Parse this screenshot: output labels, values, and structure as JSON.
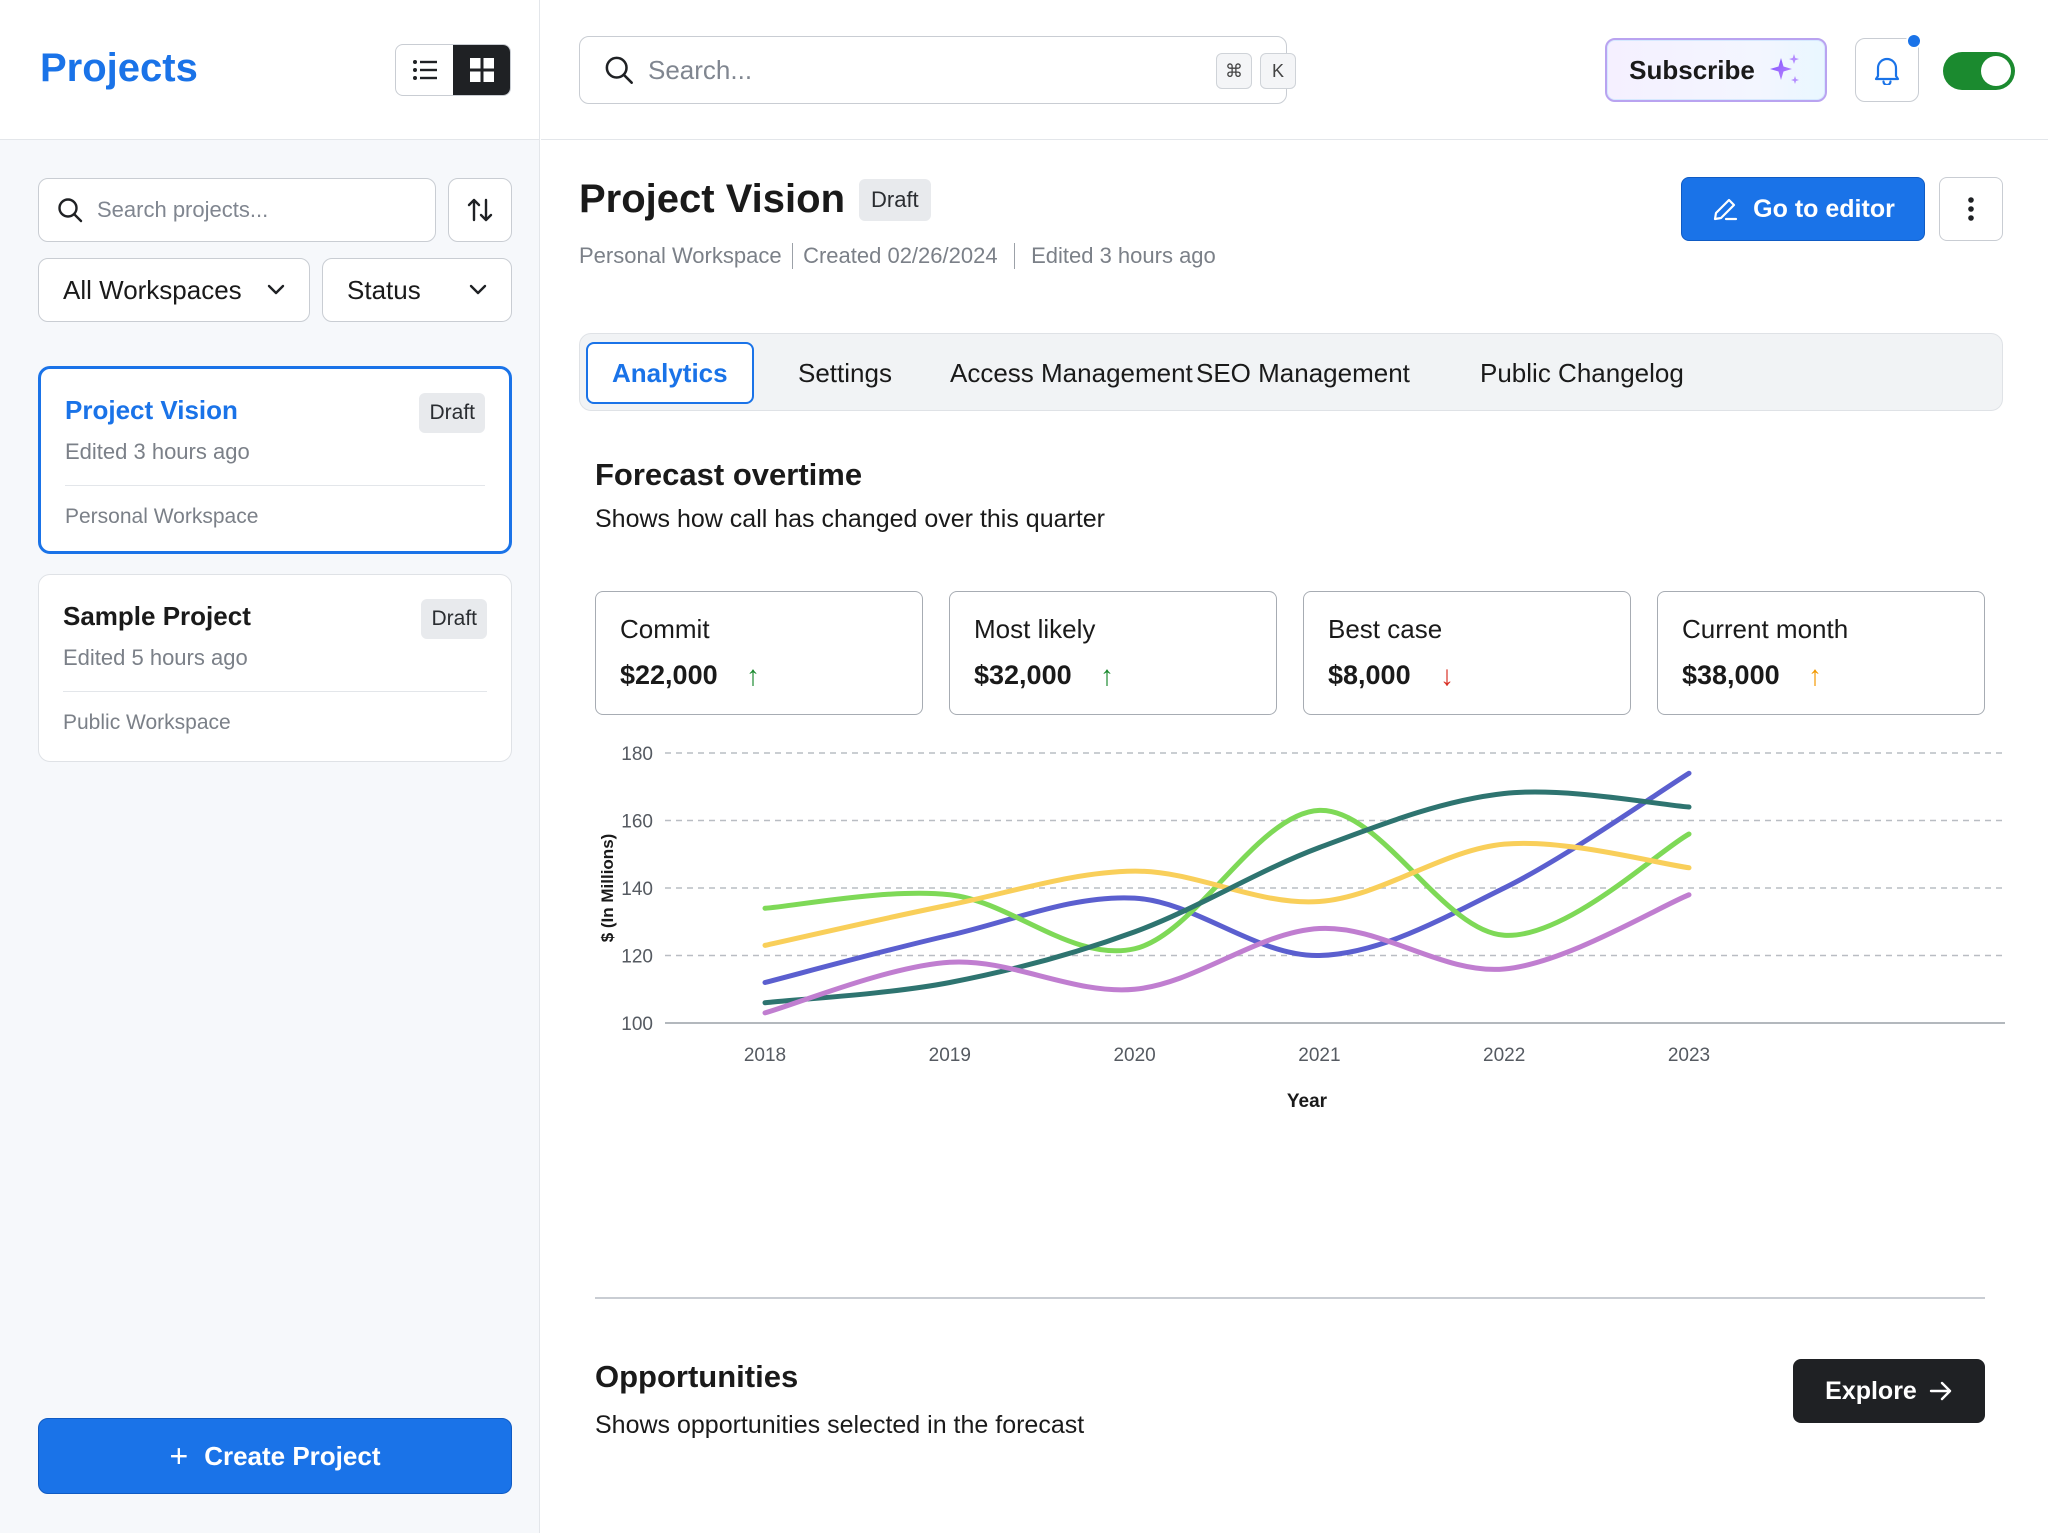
{
  "sidebar": {
    "title": "Projects",
    "search_placeholder": "Search projects...",
    "filters": {
      "workspace": "All Workspaces",
      "status": "Status"
    },
    "projects": [
      {
        "name": "Project Vision",
        "edited": "Edited 3 hours ago",
        "badge": "Draft",
        "workspace": "Personal Workspace"
      },
      {
        "name": "Sample Project",
        "edited": "Edited 5 hours ago",
        "badge": "Draft",
        "workspace": "Public Workspace"
      }
    ],
    "create_label": "Create Project"
  },
  "topbar": {
    "search_placeholder": "Search...",
    "shortcut_keys": [
      "⌘",
      "K"
    ],
    "subscribe_label": "Subscribe",
    "accent": "#1a73e8",
    "toggle_on_color": "#1b8a2f"
  },
  "project": {
    "title": "Project Vision",
    "badge": "Draft",
    "workspace": "Personal Workspace",
    "created": "Created 02/26/2024",
    "edited": "Edited 3 hours ago",
    "editor_label": "Go to editor"
  },
  "tabs": [
    "Analytics",
    "Settings",
    "Access Management",
    "SEO Management",
    "Public Changelog"
  ],
  "forecast": {
    "title": "Forecast overtime",
    "subtitle": "Shows how call has changed over this quarter",
    "stats": [
      {
        "label": "Commit",
        "value": "$22,000",
        "trend": "up",
        "color": "#1b8a2f"
      },
      {
        "label": "Most likely",
        "value": "$32,000",
        "trend": "up",
        "color": "#1b8a2f"
      },
      {
        "label": "Best case",
        "value": "$8,000",
        "trend": "down",
        "color": "#d93025"
      },
      {
        "label": "Current month",
        "value": "$38,000",
        "trend": "up",
        "color": "#f29900"
      }
    ]
  },
  "chart_data": {
    "type": "line",
    "x": [
      2018,
      2019,
      2020,
      2021,
      2022,
      2023
    ],
    "xlabel": "Year",
    "ylabel": "$ (In Millions)",
    "ylim": [
      100,
      180
    ],
    "yticks": [
      100,
      120,
      140,
      160,
      180
    ],
    "grid": true,
    "series": [
      {
        "color": "#5b5fcf",
        "values": [
          112,
          126,
          137,
          120,
          140,
          174
        ]
      },
      {
        "color": "#7ed957",
        "values": [
          134,
          138,
          122,
          163,
          126,
          156
        ]
      },
      {
        "color": "#f9cf5a",
        "values": [
          123,
          135,
          145,
          136,
          153,
          146
        ]
      },
      {
        "color": "#2e7470",
        "values": [
          106,
          112,
          127,
          152,
          168,
          164
        ]
      },
      {
        "color": "#c07ed0",
        "values": [
          103,
          118,
          110,
          128,
          116,
          138
        ]
      }
    ]
  },
  "opportunities": {
    "title": "Opportunities",
    "subtitle": "Shows opportunities selected in the forecast",
    "explore_label": "Explore"
  }
}
